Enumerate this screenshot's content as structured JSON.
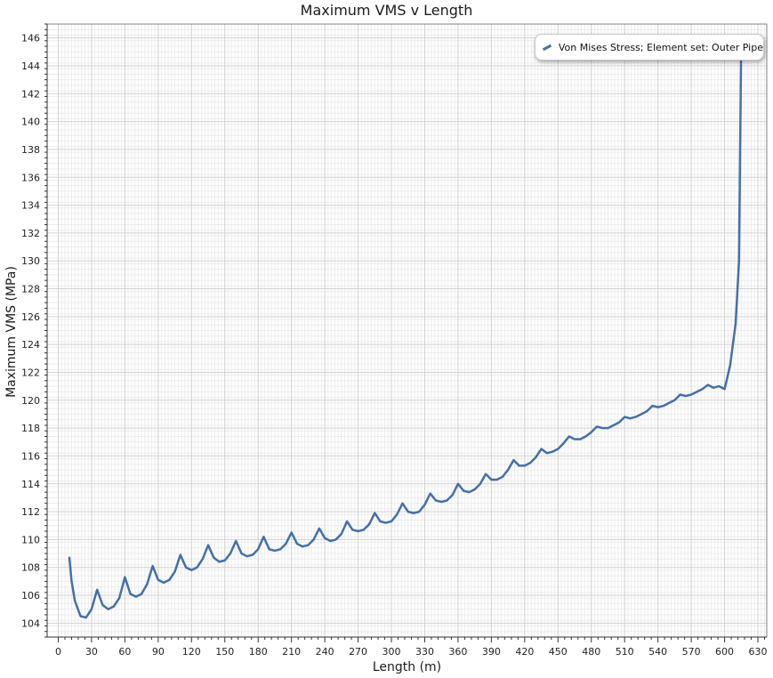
{
  "chart_data": {
    "type": "line",
    "title": "Maximum VMS v Length",
    "xlabel": "Length (m)",
    "ylabel": "Maximum VMS (MPa)",
    "xlim": [
      -10,
      638
    ],
    "ylim": [
      103,
      147
    ],
    "xticks": [
      0,
      30,
      60,
      90,
      120,
      150,
      180,
      210,
      240,
      270,
      300,
      330,
      360,
      390,
      420,
      450,
      480,
      510,
      540,
      570,
      600,
      630
    ],
    "yticks": [
      104,
      106,
      108,
      110,
      112,
      114,
      116,
      118,
      120,
      122,
      124,
      126,
      128,
      130,
      132,
      134,
      136,
      138,
      140,
      142,
      144,
      146
    ],
    "grid": true,
    "legend_position": "top-right",
    "series": [
      {
        "name": "Von Mises Stress; Element set: Outer Pipe",
        "color": "#4470a8",
        "x": [
          10,
          12,
          15,
          20,
          25,
          30,
          35,
          40,
          45,
          50,
          55,
          60,
          65,
          70,
          75,
          80,
          85,
          90,
          95,
          100,
          105,
          110,
          115,
          120,
          125,
          130,
          135,
          140,
          145,
          150,
          155,
          160,
          165,
          170,
          175,
          180,
          185,
          190,
          195,
          200,
          205,
          210,
          215,
          220,
          225,
          230,
          235,
          240,
          245,
          250,
          255,
          260,
          265,
          270,
          275,
          280,
          285,
          290,
          295,
          300,
          305,
          310,
          315,
          320,
          325,
          330,
          335,
          340,
          345,
          350,
          355,
          360,
          365,
          370,
          375,
          380,
          385,
          390,
          395,
          400,
          405,
          410,
          415,
          420,
          425,
          430,
          435,
          440,
          445,
          450,
          455,
          460,
          465,
          470,
          475,
          480,
          485,
          490,
          495,
          500,
          505,
          510,
          515,
          520,
          525,
          530,
          535,
          540,
          545,
          550,
          555,
          560,
          565,
          570,
          575,
          580,
          585,
          590,
          595,
          600,
          605,
          610,
          613,
          615
        ],
        "y": [
          108.7,
          107.0,
          105.6,
          104.5,
          104.4,
          105.0,
          106.4,
          105.3,
          105.0,
          105.2,
          105.8,
          107.3,
          106.1,
          105.9,
          106.1,
          106.8,
          108.1,
          107.1,
          106.9,
          107.1,
          107.7,
          108.9,
          108.0,
          107.8,
          108.0,
          108.6,
          109.6,
          108.7,
          108.4,
          108.5,
          109.0,
          109.9,
          109.0,
          108.8,
          108.9,
          109.3,
          110.2,
          109.3,
          109.2,
          109.3,
          109.7,
          110.5,
          109.7,
          109.5,
          109.6,
          110.0,
          110.8,
          110.1,
          109.9,
          110.0,
          110.4,
          111.3,
          110.7,
          110.6,
          110.7,
          111.1,
          111.9,
          111.3,
          111.2,
          111.3,
          111.8,
          112.6,
          112.0,
          111.9,
          112.0,
          112.5,
          113.3,
          112.8,
          112.7,
          112.8,
          113.2,
          114.0,
          113.5,
          113.4,
          113.6,
          114.0,
          114.7,
          114.3,
          114.3,
          114.5,
          115.0,
          115.7,
          115.3,
          115.3,
          115.5,
          115.9,
          116.5,
          116.2,
          116.3,
          116.5,
          116.9,
          117.4,
          117.2,
          117.2,
          117.4,
          117.7,
          118.1,
          118.0,
          118.0,
          118.2,
          118.4,
          118.8,
          118.7,
          118.8,
          119.0,
          119.2,
          119.6,
          119.5,
          119.6,
          119.8,
          120.0,
          120.4,
          120.3,
          120.4,
          120.6,
          120.8,
          121.1,
          120.9,
          121.0,
          120.8,
          122.5,
          125.5,
          130.0,
          146.0
        ]
      }
    ]
  }
}
